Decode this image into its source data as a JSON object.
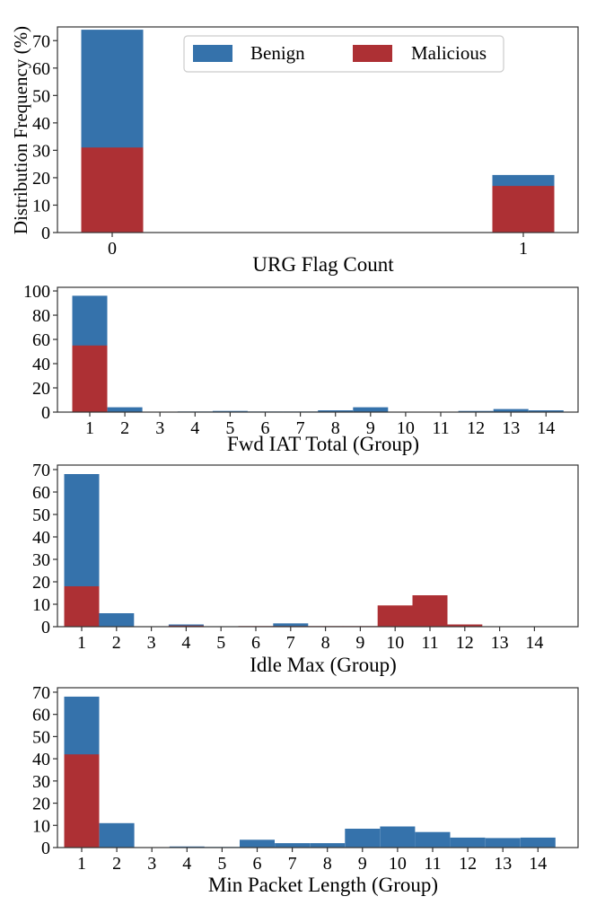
{
  "colors": {
    "benign": "#3572ab",
    "malicious": "#ad3034",
    "axis": "#333333"
  },
  "legend": {
    "benign_label": "Benign",
    "malicious_label": "Malicious"
  },
  "ylabel": "Distribution Frequency (%)",
  "chart_data": [
    {
      "type": "bar",
      "stacked": "overlay",
      "xlabel": "URG Flag Count",
      "categories": [
        "0",
        "1"
      ],
      "ylim": [
        0,
        75
      ],
      "yticks": [
        0,
        10,
        20,
        30,
        40,
        50,
        60,
        70
      ],
      "series": [
        {
          "name": "Benign",
          "values": [
            74,
            21
          ]
        },
        {
          "name": "Malicious",
          "values": [
            31,
            17
          ]
        }
      ]
    },
    {
      "type": "bar",
      "stacked": "overlay",
      "xlabel": "Fwd IAT Total (Group)",
      "categories": [
        "1",
        "2",
        "3",
        "4",
        "5",
        "6",
        "7",
        "8",
        "9",
        "10",
        "11",
        "12",
        "13",
        "14"
      ],
      "ylim": [
        0,
        103
      ],
      "yticks": [
        0,
        20,
        40,
        60,
        80,
        100
      ],
      "series": [
        {
          "name": "Benign",
          "values": [
            96,
            4,
            0,
            0.5,
            1,
            0.5,
            0.5,
            1.5,
            4,
            0,
            0,
            1,
            2.5,
            1.5
          ]
        },
        {
          "name": "Malicious",
          "values": [
            55,
            0,
            0,
            0,
            0,
            0,
            0,
            0,
            0,
            0,
            0,
            0,
            0,
            0
          ]
        }
      ]
    },
    {
      "type": "bar",
      "stacked": "overlay",
      "xlabel": "Idle Max (Group)",
      "categories": [
        "1",
        "2",
        "3",
        "4",
        "5",
        "6",
        "7",
        "8",
        "9",
        "10",
        "11",
        "12",
        "13",
        "14"
      ],
      "ylim": [
        0,
        72
      ],
      "yticks": [
        0,
        10,
        20,
        30,
        40,
        50,
        60,
        70
      ],
      "series": [
        {
          "name": "Benign",
          "values": [
            68,
            6,
            0,
            1,
            0,
            0,
            1.5,
            0,
            0,
            0,
            0,
            0,
            0,
            0
          ]
        },
        {
          "name": "Malicious",
          "values": [
            18,
            0,
            0,
            0.5,
            0,
            0.3,
            0.3,
            0.3,
            0.3,
            9.5,
            14,
            1,
            0,
            0
          ]
        }
      ]
    },
    {
      "type": "bar",
      "stacked": "overlay",
      "xlabel": "Min Packet Length (Group)",
      "categories": [
        "1",
        "2",
        "3",
        "4",
        "5",
        "6",
        "7",
        "8",
        "9",
        "10",
        "11",
        "12",
        "13",
        "14"
      ],
      "ylim": [
        0,
        72
      ],
      "yticks": [
        0,
        10,
        20,
        30,
        40,
        50,
        60,
        70
      ],
      "series": [
        {
          "name": "Benign",
          "values": [
            68,
            11,
            0,
            0.5,
            0.3,
            3.5,
            2,
            2,
            8.5,
            9.5,
            7,
            4.5,
            4.3,
            4.5
          ]
        },
        {
          "name": "Malicious",
          "values": [
            42,
            0,
            0,
            0,
            0,
            0,
            0,
            0,
            0,
            0,
            0,
            0,
            0,
            0
          ]
        }
      ]
    }
  ]
}
